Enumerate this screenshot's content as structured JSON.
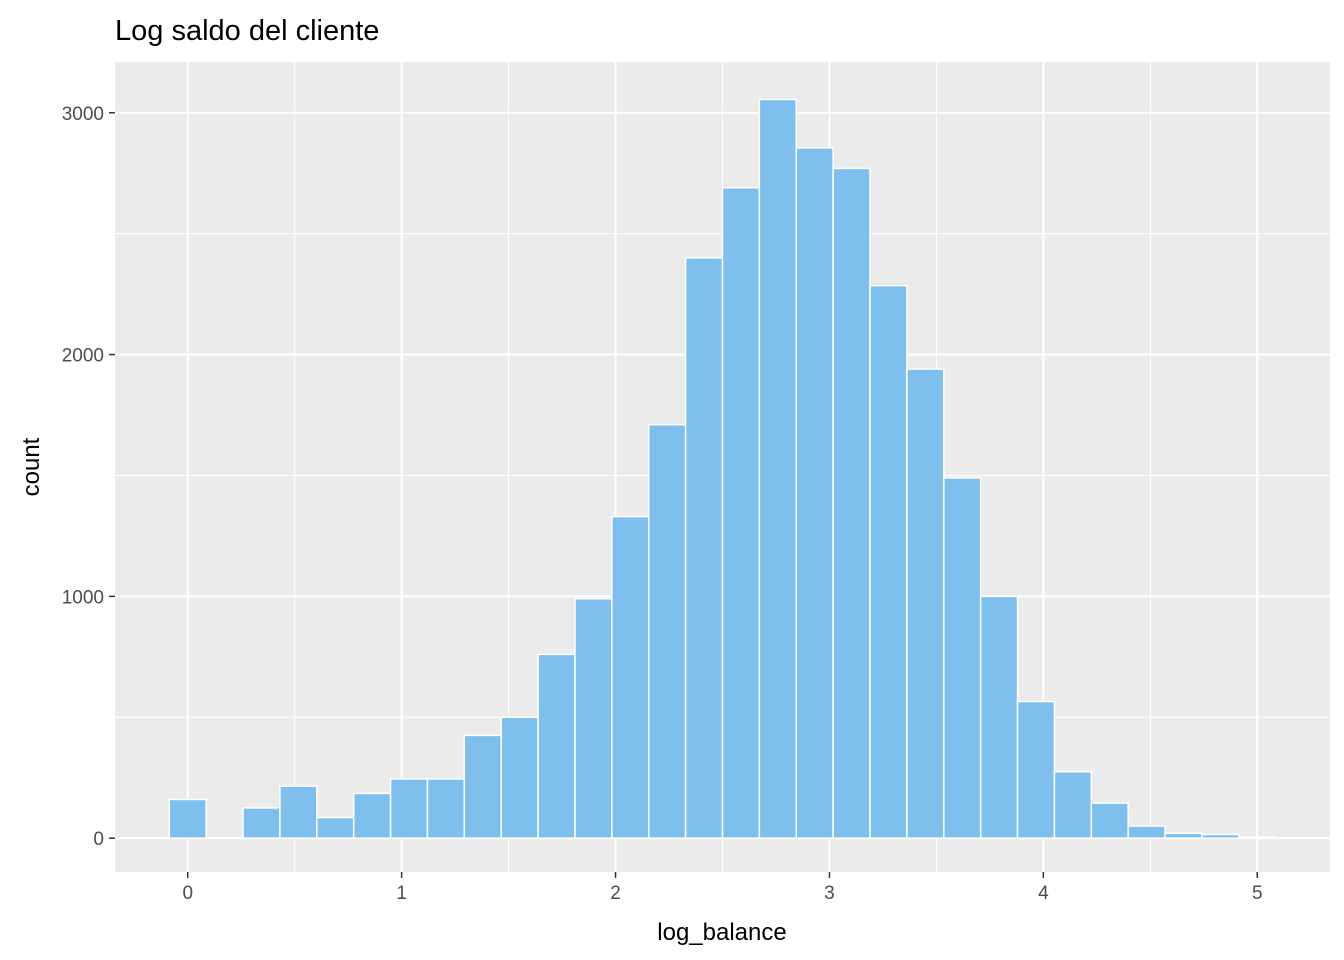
{
  "chart_data": {
    "type": "bar",
    "title": "Log saldo del cliente",
    "xlabel": "log_balance",
    "ylabel": "count",
    "x_ticks": [
      "0",
      "1",
      "2",
      "3",
      "4",
      "5"
    ],
    "y_ticks": [
      "0",
      "1000",
      "2000",
      "3000"
    ],
    "x_tick_values": [
      0,
      1,
      2,
      3,
      4,
      5
    ],
    "y_tick_values": [
      0,
      1000,
      2000,
      3000
    ],
    "xlim": [
      -0.34,
      5.34
    ],
    "ylim": [
      -140,
      3210
    ],
    "bin_width": 0.1724,
    "bin_centers": [
      0.0,
      0.1724,
      0.3448,
      0.5172,
      0.6897,
      0.8621,
      1.0345,
      1.2069,
      1.3793,
      1.5517,
      1.7241,
      1.8966,
      2.069,
      2.2414,
      2.4138,
      2.5862,
      2.7586,
      2.931,
      3.1034,
      3.2759,
      3.4483,
      3.6207,
      3.7931,
      3.9655,
      4.1379,
      4.3103,
      4.4828,
      4.6552,
      4.8276,
      5.0
    ],
    "values": [
      160,
      0,
      125,
      215,
      85,
      185,
      245,
      245,
      425,
      500,
      760,
      990,
      1330,
      1710,
      2400,
      2690,
      3055,
      2855,
      2770,
      2285,
      1940,
      1490,
      1000,
      565,
      275,
      145,
      50,
      20,
      15,
      5
    ],
    "fill_color": "#7fbfed",
    "panel_color": "#ebebeb",
    "grid": true,
    "legend": "none"
  }
}
